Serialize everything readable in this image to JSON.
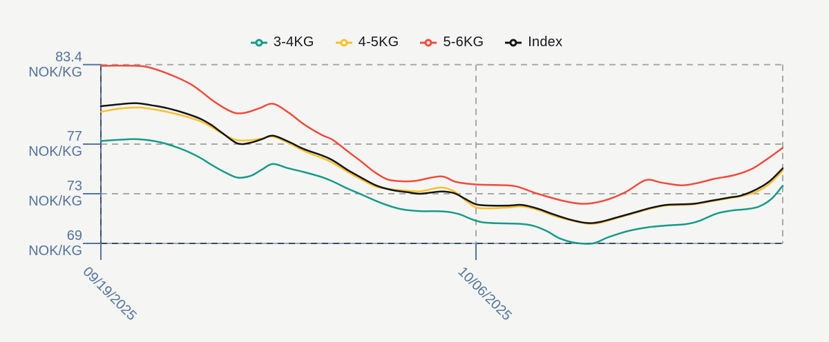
{
  "chart": {
    "background": "#F5F5F3",
    "axis_color": "#54749E",
    "axis_light_color": "#93A7C5",
    "grid_color": "#A7A7A7",
    "grid_dark_color": "#3E4A59",
    "label_color": "#54749E",
    "legend_text_color": "#16191D"
  },
  "chart_data": {
    "type": "line",
    "title": "",
    "xlabel": "",
    "ylabel": "NOK/KG",
    "ylim": [
      69,
      83.4
    ],
    "grid": "dashed",
    "legend_position": "top",
    "x_axis": {
      "unit": "date",
      "domain_days": [
        0,
        30.9
      ],
      "ticks": [
        {
          "day": 0,
          "label": "09/19/2025"
        },
        {
          "day": 17,
          "label": "10/06/2025"
        }
      ]
    },
    "y_axis": {
      "unit": "NOK/KG",
      "ticks": [
        {
          "value": 83.4,
          "label": "83.4"
        },
        {
          "value": 77,
          "label": "77"
        },
        {
          "value": 73,
          "label": "73"
        },
        {
          "value": 69,
          "label": "69"
        }
      ]
    },
    "series": [
      {
        "name": "3-4KG",
        "color": "#149B87",
        "points": [
          [
            0,
            77.25
          ],
          [
            0.8,
            77.35
          ],
          [
            1.6,
            77.4
          ],
          [
            2.4,
            77.25
          ],
          [
            3,
            77.0
          ],
          [
            3.8,
            76.5
          ],
          [
            4.5,
            75.9
          ],
          [
            5,
            75.35
          ],
          [
            5.6,
            74.75
          ],
          [
            6.2,
            74.3
          ],
          [
            6.8,
            74.45
          ],
          [
            7.3,
            74.95
          ],
          [
            7.8,
            75.4
          ],
          [
            8.5,
            75.05
          ],
          [
            9.2,
            74.75
          ],
          [
            10,
            74.35
          ],
          [
            10.5,
            74.0
          ],
          [
            11.2,
            73.4
          ],
          [
            11.8,
            72.95
          ],
          [
            12.5,
            72.4
          ],
          [
            13.2,
            71.95
          ],
          [
            13.8,
            71.7
          ],
          [
            14.5,
            71.6
          ],
          [
            15.5,
            71.58
          ],
          [
            16.2,
            71.38
          ],
          [
            16.8,
            70.95
          ],
          [
            17.3,
            70.7
          ],
          [
            18,
            70.62
          ],
          [
            19,
            70.58
          ],
          [
            19.6,
            70.42
          ],
          [
            20.2,
            70.0
          ],
          [
            20.8,
            69.4
          ],
          [
            21.5,
            69.05
          ],
          [
            22.3,
            69.0
          ],
          [
            23,
            69.5
          ],
          [
            23.9,
            70.0
          ],
          [
            24.8,
            70.3
          ],
          [
            25.7,
            70.45
          ],
          [
            26.5,
            70.55
          ],
          [
            27.1,
            70.8
          ],
          [
            27.9,
            71.4
          ],
          [
            28.6,
            71.65
          ],
          [
            29.2,
            71.75
          ],
          [
            29.8,
            71.95
          ],
          [
            30.4,
            72.6
          ],
          [
            30.9,
            73.65
          ]
        ]
      },
      {
        "name": "4-5KG",
        "color": "#F9C02E",
        "points": [
          [
            0,
            79.6
          ],
          [
            0.8,
            79.85
          ],
          [
            1.7,
            79.95
          ],
          [
            2.4,
            79.8
          ],
          [
            3,
            79.6
          ],
          [
            3.8,
            79.25
          ],
          [
            4.5,
            78.85
          ],
          [
            5,
            78.4
          ],
          [
            5.5,
            77.85
          ],
          [
            6.1,
            77.35
          ],
          [
            6.7,
            77.3
          ],
          [
            7.3,
            77.45
          ],
          [
            7.8,
            77.6
          ],
          [
            8.5,
            77.1
          ],
          [
            9.2,
            76.45
          ],
          [
            10,
            75.9
          ],
          [
            10.5,
            75.5
          ],
          [
            11.2,
            74.75
          ],
          [
            11.8,
            74.15
          ],
          [
            12.5,
            73.55
          ],
          [
            13.2,
            73.35
          ],
          [
            13.9,
            73.25
          ],
          [
            14.5,
            73.2
          ],
          [
            15.4,
            73.5
          ],
          [
            16,
            73.2
          ],
          [
            16.5,
            72.5
          ],
          [
            17,
            71.9
          ],
          [
            17.6,
            71.82
          ],
          [
            18.5,
            71.9
          ],
          [
            19.1,
            71.98
          ],
          [
            19.8,
            71.7
          ],
          [
            20.5,
            71.25
          ],
          [
            21.2,
            70.9
          ],
          [
            22,
            70.6
          ],
          [
            22.6,
            70.65
          ],
          [
            23.4,
            71.05
          ],
          [
            24.2,
            71.45
          ],
          [
            24.9,
            71.8
          ],
          [
            25.6,
            72.05
          ],
          [
            26.3,
            72.1
          ],
          [
            26.9,
            72.15
          ],
          [
            27.7,
            72.4
          ],
          [
            28.5,
            72.65
          ],
          [
            29,
            72.8
          ],
          [
            29.7,
            73.15
          ],
          [
            30.3,
            73.8
          ],
          [
            30.9,
            74.85
          ]
        ]
      },
      {
        "name": "5-6KG",
        "color": "#F04A3C",
        "points": [
          [
            0,
            83.3
          ],
          [
            1,
            83.32
          ],
          [
            2,
            83.25
          ],
          [
            3,
            82.7
          ],
          [
            4,
            81.9
          ],
          [
            4.5,
            81.3
          ],
          [
            5,
            80.6
          ],
          [
            5.6,
            79.9
          ],
          [
            6.1,
            79.5
          ],
          [
            6.6,
            79.55
          ],
          [
            7.2,
            79.9
          ],
          [
            7.8,
            80.25
          ],
          [
            8.5,
            79.55
          ],
          [
            9.2,
            78.6
          ],
          [
            10,
            77.75
          ],
          [
            10.5,
            77.35
          ],
          [
            11.2,
            76.4
          ],
          [
            11.8,
            75.6
          ],
          [
            12.4,
            74.75
          ],
          [
            13,
            74.15
          ],
          [
            13.7,
            74.0
          ],
          [
            14.3,
            74.05
          ],
          [
            15.4,
            74.4
          ],
          [
            16.1,
            73.95
          ],
          [
            17,
            73.75
          ],
          [
            18,
            73.7
          ],
          [
            18.8,
            73.6
          ],
          [
            19.8,
            73.0
          ],
          [
            20.9,
            72.45
          ],
          [
            21.7,
            72.2
          ],
          [
            22.3,
            72.25
          ],
          [
            23,
            72.55
          ],
          [
            23.8,
            73.15
          ],
          [
            24.7,
            74.1
          ],
          [
            25.4,
            73.9
          ],
          [
            26.3,
            73.68
          ],
          [
            27,
            73.85
          ],
          [
            27.8,
            74.2
          ],
          [
            28.7,
            74.5
          ],
          [
            29.5,
            75.0
          ],
          [
            30.2,
            75.8
          ],
          [
            30.9,
            76.7
          ]
        ]
      },
      {
        "name": "Index",
        "color": "#141414",
        "points": [
          [
            0,
            80.05
          ],
          [
            0.8,
            80.2
          ],
          [
            1.6,
            80.3
          ],
          [
            2.4,
            80.1
          ],
          [
            3,
            79.9
          ],
          [
            3.8,
            79.5
          ],
          [
            4.5,
            79.05
          ],
          [
            5,
            78.55
          ],
          [
            5.5,
            77.9
          ],
          [
            6.2,
            77.05
          ],
          [
            6.8,
            77.12
          ],
          [
            7.3,
            77.4
          ],
          [
            7.8,
            77.68
          ],
          [
            8.5,
            77.2
          ],
          [
            9.2,
            76.6
          ],
          [
            10,
            76.1
          ],
          [
            10.5,
            75.7
          ],
          [
            11.2,
            74.9
          ],
          [
            11.8,
            74.3
          ],
          [
            12.5,
            73.65
          ],
          [
            13.2,
            73.3
          ],
          [
            13.9,
            73.12
          ],
          [
            14.5,
            73.0
          ],
          [
            15.4,
            73.18
          ],
          [
            16,
            73.05
          ],
          [
            16.5,
            72.6
          ],
          [
            17,
            72.15
          ],
          [
            17.6,
            72.05
          ],
          [
            18.5,
            72.05
          ],
          [
            19.1,
            72.1
          ],
          [
            19.8,
            71.8
          ],
          [
            20.5,
            71.35
          ],
          [
            21.2,
            70.95
          ],
          [
            22,
            70.65
          ],
          [
            22.6,
            70.72
          ],
          [
            23.4,
            71.1
          ],
          [
            24.2,
            71.5
          ],
          [
            24.9,
            71.85
          ],
          [
            25.6,
            72.1
          ],
          [
            26.3,
            72.15
          ],
          [
            26.9,
            72.2
          ],
          [
            27.7,
            72.45
          ],
          [
            28.5,
            72.7
          ],
          [
            29,
            72.85
          ],
          [
            29.7,
            73.35
          ],
          [
            30.3,
            74.0
          ],
          [
            30.9,
            75.05
          ]
        ]
      }
    ]
  }
}
